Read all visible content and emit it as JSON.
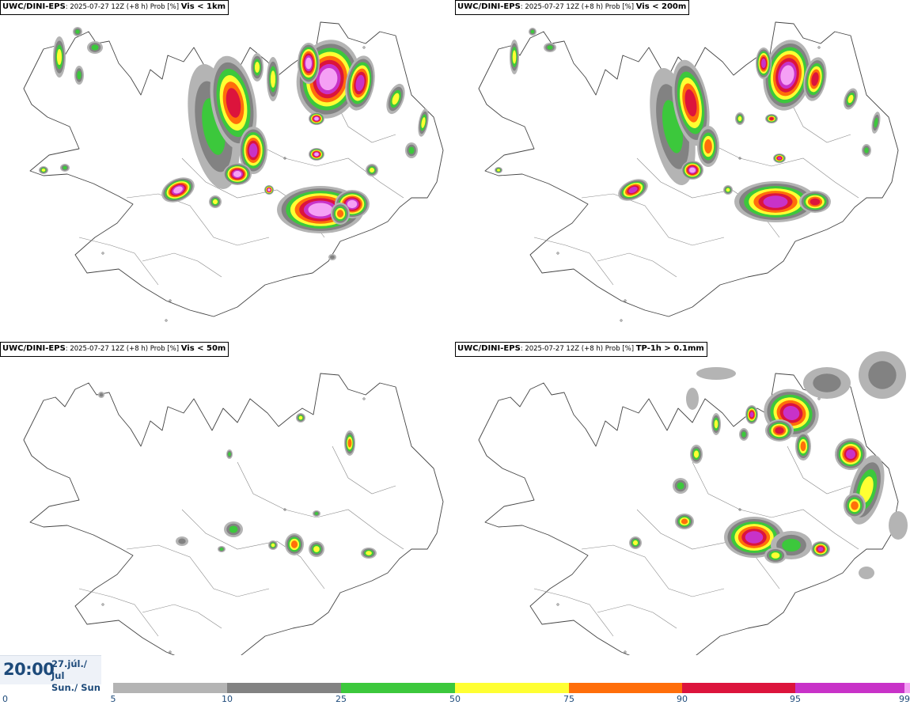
{
  "panels": [
    {
      "model": "UWC/DINI-EPS",
      "run": ": 2025-07-27 12Z (+8 h) Prob [%] ",
      "param": "Vis < 1km"
    },
    {
      "model": "UWC/DINI-EPS",
      "run": ": 2025-07-27 12Z (+8 h) Prob [%] ",
      "param": "Vis < 200m"
    },
    {
      "model": "UWC/DINI-EPS",
      "run": ": 2025-07-27 12Z (+8 h) Prob [%] ",
      "param": "Vis < 50m"
    },
    {
      "model": "UWC/DINI-EPS",
      "run": ": 2025-07-27 12Z (+8 h) Prob [%] ",
      "param": "TP-1h > 0.1mm"
    }
  ],
  "valid_time": {
    "time": "20:00",
    "date_line1": "27.júl./ Jul",
    "date_line2": "Sun./ Sun"
  },
  "legend": {
    "ticks": [
      "0",
      "5",
      "10",
      "25",
      "50",
      "75",
      "90",
      "95",
      "99"
    ],
    "bins": [
      {
        "from": 5,
        "to": 10,
        "color": "#b4b4b4"
      },
      {
        "from": 10,
        "to": 25,
        "color": "#828282"
      },
      {
        "from": 25,
        "to": 50,
        "color": "#3cc83c"
      },
      {
        "from": 50,
        "to": 75,
        "color": "#ffff32"
      },
      {
        "from": 75,
        "to": 90,
        "color": "#ff6e0a"
      },
      {
        "from": 90,
        "to": 95,
        "color": "#dc143c"
      },
      {
        "from": 95,
        "to": 99,
        "color": "#c832c8"
      },
      {
        "from": 99,
        "to": 100,
        "color": "#f5a0f5"
      }
    ]
  },
  "icons": [
    "iceland-coastline-map",
    "probability-blob"
  ]
}
